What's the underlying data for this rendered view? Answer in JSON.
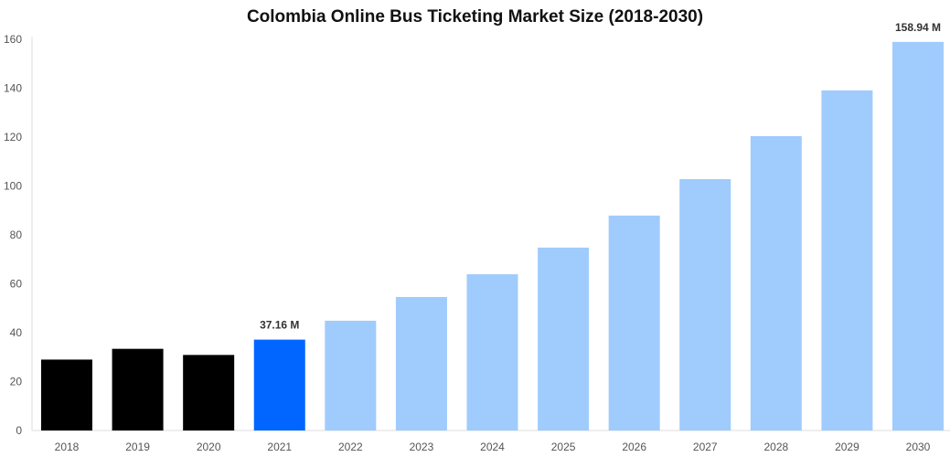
{
  "chart_data": {
    "type": "bar",
    "title": "Colombia Online Bus Ticketing Market Size (2018-2030)",
    "xlabel": "",
    "ylabel": "",
    "ylim": [
      0,
      160
    ],
    "yticks": [
      0,
      20,
      40,
      60,
      80,
      100,
      120,
      140,
      160
    ],
    "grid": false,
    "categories": [
      "2018",
      "2019",
      "2020",
      "2021",
      "2022",
      "2023",
      "2024",
      "2025",
      "2026",
      "2027",
      "2028",
      "2029",
      "2030"
    ],
    "values": [
      29.0,
      33.4,
      30.9,
      37.16,
      44.9,
      54.6,
      63.9,
      74.8,
      87.9,
      102.8,
      120.4,
      139.1,
      158.94
    ],
    "bar_colors": [
      "#000000",
      "#000000",
      "#000000",
      "#0066ff",
      "#a0cbfd",
      "#a0cbfd",
      "#a0cbfd",
      "#a0cbfd",
      "#a0cbfd",
      "#a0cbfd",
      "#a0cbfd",
      "#a0cbfd",
      "#a0cbfd"
    ],
    "data_labels": [
      {
        "category": "2021",
        "text": "37.16 M"
      },
      {
        "category": "2030",
        "text": "158.94 M"
      }
    ]
  }
}
